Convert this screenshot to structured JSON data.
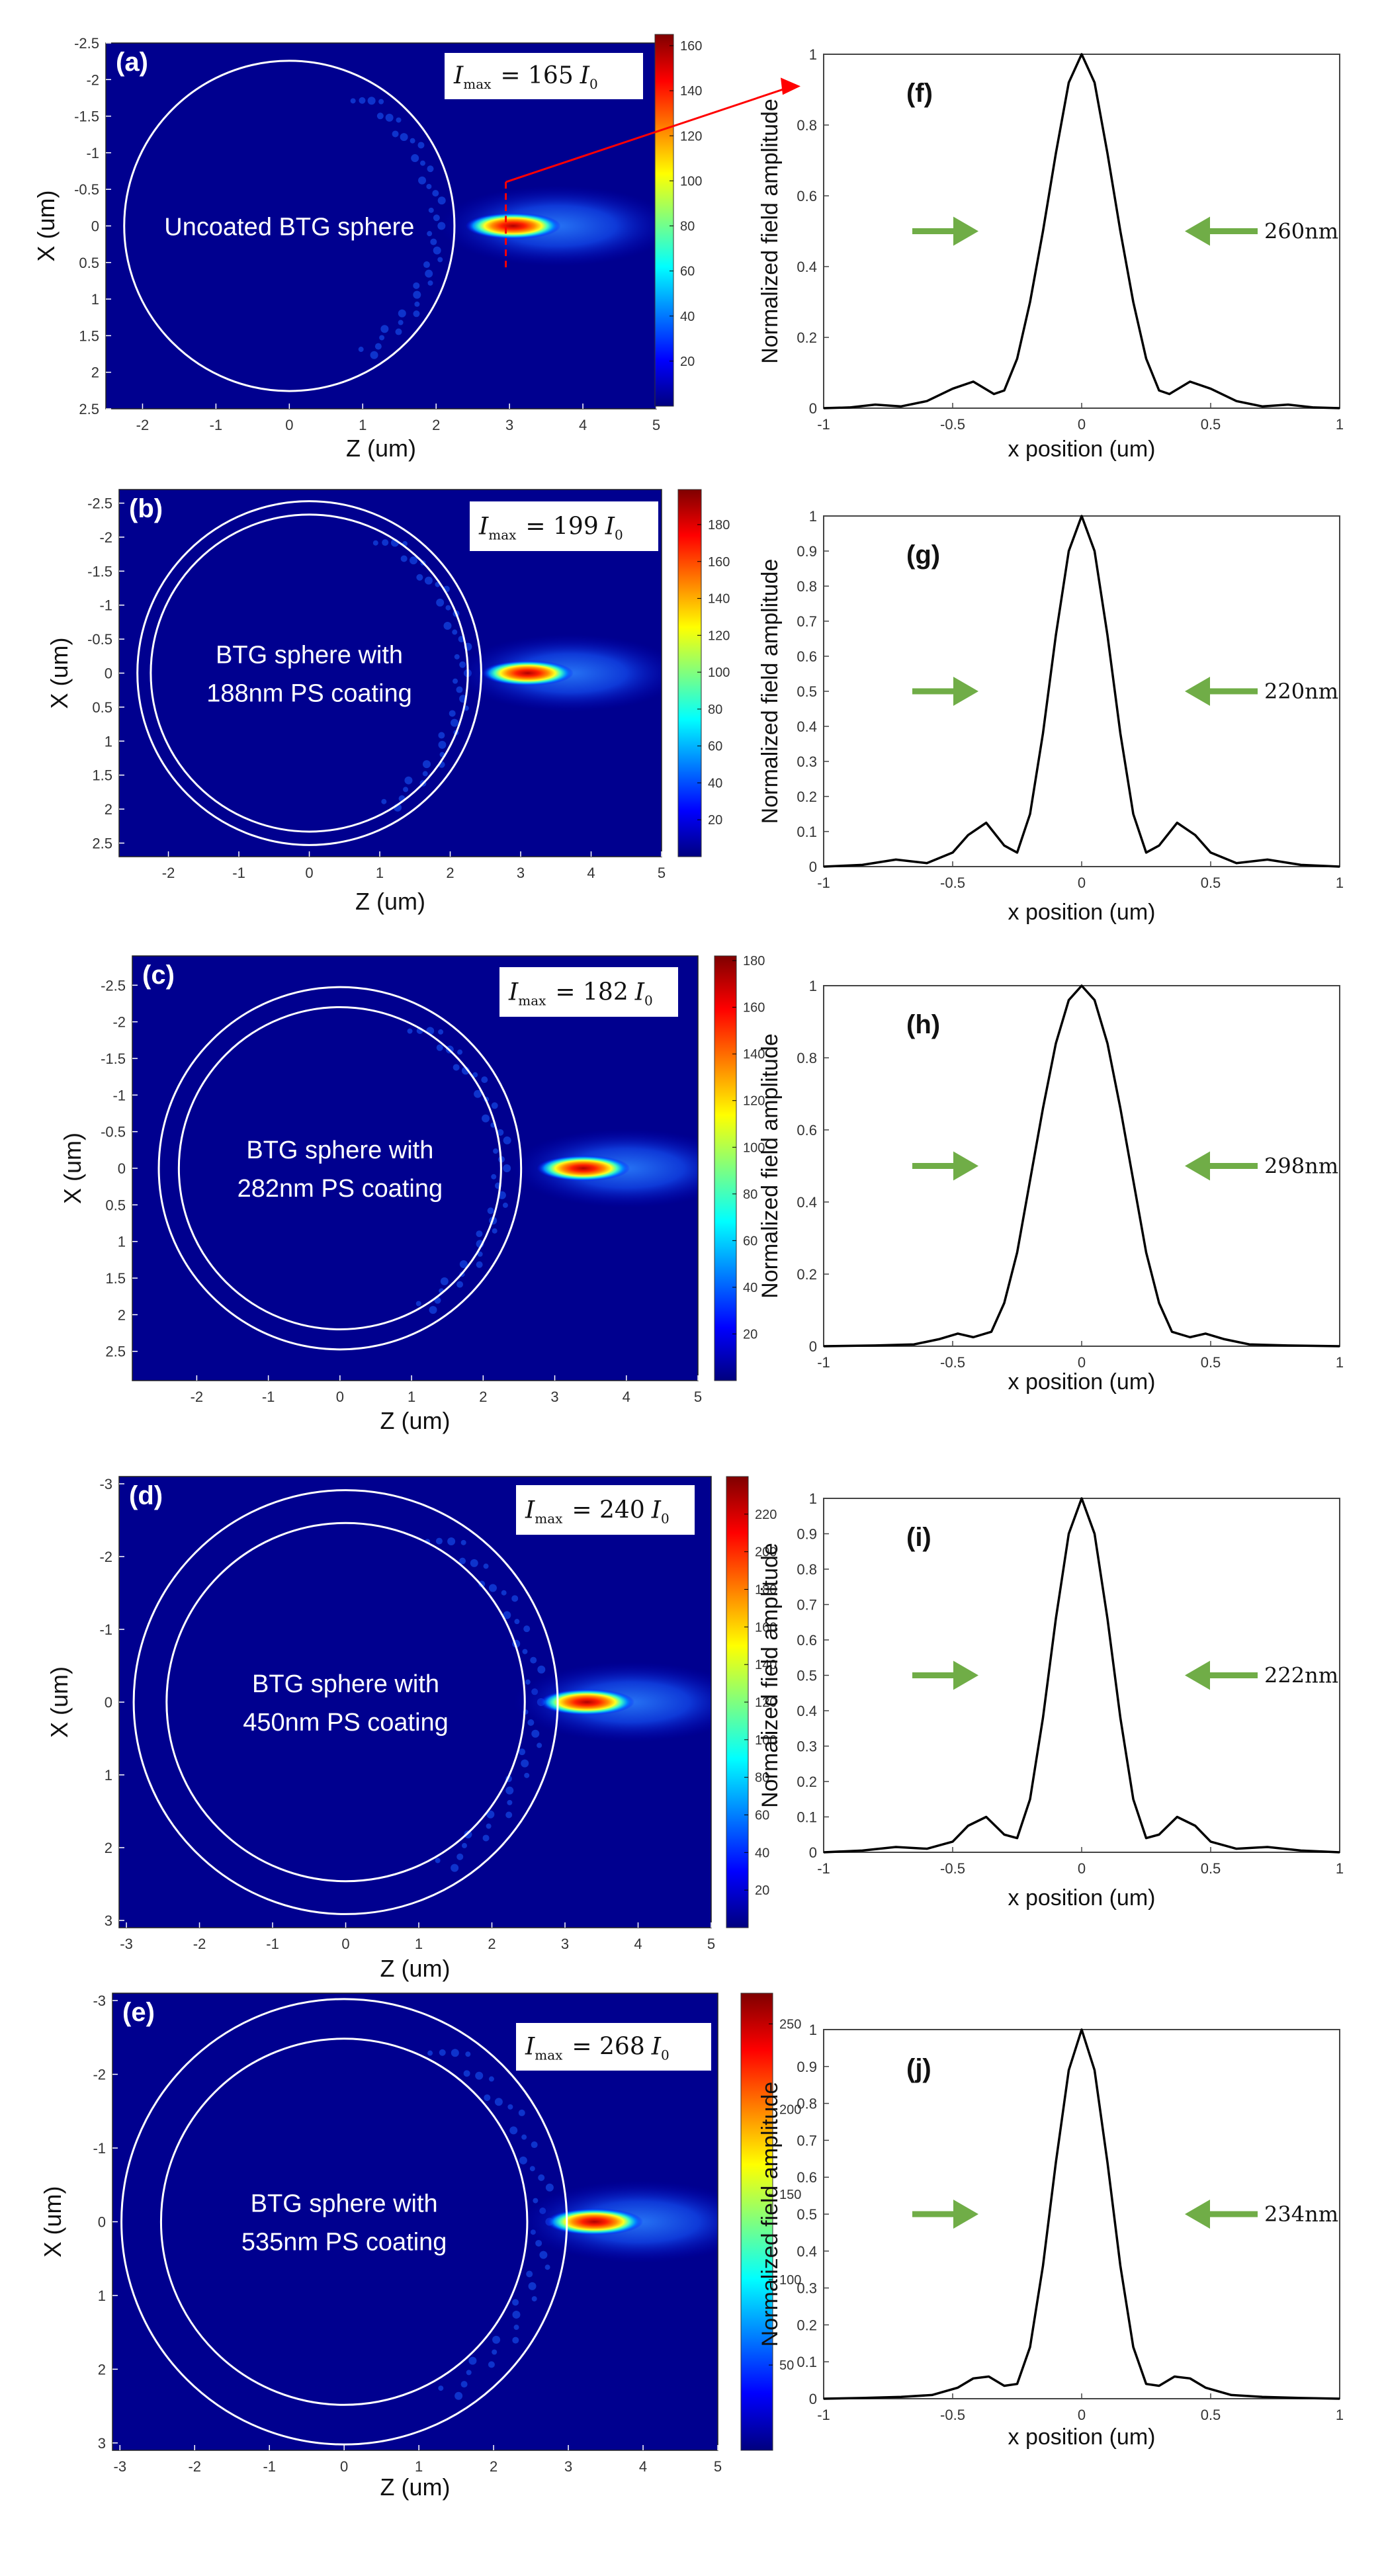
{
  "colors": {
    "field_bg": "#00008f",
    "ring": "#ffffff",
    "curve": "#000000",
    "arrow": "#70ad47",
    "pointer": "#ff0000"
  },
  "colormap": [
    "#00007f",
    "#0000ff",
    "#007fff",
    "#00ffff",
    "#7fff7f",
    "#ffff00",
    "#ff7f00",
    "#ff0000",
    "#7f0000"
  ],
  "chart_data": [
    {
      "type": "heatmap",
      "id": "a",
      "panel_label": "(a)",
      "imax_text": "= 165",
      "imax_subject": "I",
      "imax_sub": "max",
      "imax_unit": "I",
      "imax_unit_sub": "0",
      "description_lines": [
        "Uncoated BTG sphere"
      ],
      "xlabel": "Z (um)",
      "ylabel": "X (um)",
      "xlim": [
        -2.5,
        5
      ],
      "ylim": [
        -2.5,
        2.5
      ],
      "xticks": [
        -2,
        -1,
        0,
        1,
        2,
        3,
        4,
        5
      ],
      "yticks": [
        -2.5,
        -2,
        -1.5,
        -1,
        -0.5,
        0,
        0.5,
        1,
        1.5,
        2,
        2.5
      ],
      "xtick_labels": [
        "-2",
        "-1",
        "0",
        "1",
        "2",
        "3",
        "4",
        "5"
      ],
      "ytick_labels": [
        "-2.5",
        "-2",
        "-1.5",
        "-1",
        "-0.5",
        "0",
        "0.5",
        "1",
        "1.5",
        "2",
        "2.5"
      ],
      "circles_radius_um": [
        2.25
      ],
      "focus_z_um": 3.05,
      "cbar_ticks": [
        20,
        40,
        60,
        80,
        100,
        120,
        140,
        160
      ],
      "cbar_tick_labels": [
        "20",
        "40",
        "60",
        "80",
        "100",
        "120",
        "140",
        "160"
      ],
      "cbar_max": 165
    },
    {
      "type": "heatmap",
      "id": "b",
      "panel_label": "(b)",
      "imax_text": "= 199",
      "imax_subject": "I",
      "imax_sub": "max",
      "imax_unit": "I",
      "imax_unit_sub": "0",
      "description_lines": [
        "BTG sphere with",
        "188nm PS coating"
      ],
      "xlabel": "Z (um)",
      "ylabel": "X (um)",
      "xlim": [
        -2.7,
        5
      ],
      "ylim": [
        -2.7,
        2.7
      ],
      "xticks": [
        -2,
        -1,
        0,
        1,
        2,
        3,
        4,
        5
      ],
      "yticks": [
        -2.5,
        -2,
        -1.5,
        -1,
        -0.5,
        0,
        0.5,
        1,
        1.5,
        2,
        2.5
      ],
      "xtick_labels": [
        "-2",
        "-1",
        "0",
        "1",
        "2",
        "3",
        "4",
        "5"
      ],
      "ytick_labels": [
        "-2.5",
        "-2",
        "-1.5",
        "-1",
        "-0.5",
        "0",
        "0.5",
        "1",
        "1.5",
        "2",
        "2.5"
      ],
      "circles_radius_um": [
        2.25,
        2.44
      ],
      "focus_z_um": 3.1,
      "cbar_ticks": [
        20,
        40,
        60,
        80,
        100,
        120,
        140,
        160,
        180
      ],
      "cbar_tick_labels": [
        "20",
        "40",
        "60",
        "80",
        "100",
        "120",
        "140",
        "160",
        "180"
      ],
      "cbar_max": 199
    },
    {
      "type": "heatmap",
      "id": "c",
      "panel_label": "(c)",
      "imax_text": "= 182",
      "imax_subject": "I",
      "imax_sub": "max",
      "imax_unit": "I",
      "imax_unit_sub": "0",
      "description_lines": [
        "BTG sphere with",
        "282nm PS coating"
      ],
      "xlabel": "Z (um)",
      "ylabel": "X (um)",
      "xlim": [
        -2.9,
        5
      ],
      "ylim": [
        -2.9,
        2.9
      ],
      "xticks": [
        -2,
        -1,
        0,
        1,
        2,
        3,
        4,
        5
      ],
      "yticks": [
        -2.5,
        -2,
        -1.5,
        -1,
        -0.5,
        0,
        0.5,
        1,
        1.5,
        2,
        2.5
      ],
      "xtick_labels": [
        "-2",
        "-1",
        "0",
        "1",
        "2",
        "3",
        "4",
        "5"
      ],
      "ytick_labels": [
        "-2.5",
        "-2",
        "-1.5",
        "-1",
        "-0.5",
        "0",
        "0.5",
        "1",
        "1.5",
        "2",
        "2.5"
      ],
      "circles_radius_um": [
        2.25,
        2.53
      ],
      "focus_z_um": 3.4,
      "cbar_ticks": [
        20,
        40,
        60,
        80,
        100,
        120,
        140,
        160,
        180
      ],
      "cbar_tick_labels": [
        "20",
        "40",
        "60",
        "80",
        "100",
        "120",
        "140",
        "160",
        "180"
      ],
      "cbar_max": 182
    },
    {
      "type": "heatmap",
      "id": "d",
      "panel_label": "(d)",
      "imax_text": "= 240",
      "imax_subject": "I",
      "imax_sub": "max",
      "imax_unit": "I",
      "imax_unit_sub": "0",
      "description_lines": [
        "BTG sphere with",
        "450nm PS coating"
      ],
      "xlabel": "Z (um)",
      "ylabel": "X (um)",
      "xlim": [
        -3.1,
        5
      ],
      "ylim": [
        -3.1,
        3.1
      ],
      "xticks": [
        -3,
        -2,
        -1,
        0,
        1,
        2,
        3,
        4,
        5
      ],
      "yticks": [
        -3,
        -2,
        -1,
        0,
        1,
        2,
        3
      ],
      "xtick_labels": [
        "-3",
        "-2",
        "-1",
        "0",
        "1",
        "2",
        "3",
        "4",
        "5"
      ],
      "ytick_labels": [
        "-3",
        "-2",
        "-1",
        "0",
        "1",
        "2",
        "3"
      ],
      "circles_radius_um": [
        2.45,
        2.9
      ],
      "focus_z_um": 3.3,
      "cbar_ticks": [
        20,
        40,
        60,
        80,
        100,
        120,
        140,
        160,
        180,
        200,
        220
      ],
      "cbar_tick_labels": [
        "20",
        "40",
        "60",
        "80",
        "100",
        "120",
        "140",
        "160",
        "180",
        "200",
        "220"
      ],
      "cbar_max": 240
    },
    {
      "type": "heatmap",
      "id": "e",
      "panel_label": "(e)",
      "imax_text": "= 268",
      "imax_subject": "I",
      "imax_sub": "max",
      "imax_unit": "I",
      "imax_unit_sub": "0",
      "description_lines": [
        "BTG sphere with",
        "535nm PS coating"
      ],
      "xlabel": "Z (um)",
      "ylabel": "X (um)",
      "xlim": [
        -3.1,
        5
      ],
      "ylim": [
        -3.1,
        3.1
      ],
      "xticks": [
        -3,
        -2,
        -1,
        0,
        1,
        2,
        3,
        4,
        5
      ],
      "yticks": [
        -3,
        -2,
        -1,
        0,
        1,
        2,
        3
      ],
      "xtick_labels": [
        "-3",
        "-2",
        "-1",
        "0",
        "1",
        "2",
        "3",
        "4",
        "5"
      ],
      "ytick_labels": [
        "-3",
        "-2",
        "-1",
        "0",
        "1",
        "2",
        "3"
      ],
      "circles_radius_um": [
        2.45,
        2.98
      ],
      "focus_z_um": 3.35,
      "cbar_ticks": [
        50,
        100,
        150,
        200,
        250
      ],
      "cbar_tick_labels": [
        "50",
        "100",
        "150",
        "200",
        "250"
      ],
      "cbar_max": 268
    },
    {
      "type": "line",
      "id": "f",
      "panel_label": "(f)",
      "fwhm_label": "260nm",
      "xlabel": "x position (um)",
      "ylabel": "Normalized field amplitude",
      "xlim": [
        -1,
        1
      ],
      "ylim": [
        0,
        1
      ],
      "xticks": [
        -1,
        -0.5,
        0,
        0.5,
        1
      ],
      "xtick_labels": [
        "-1",
        "-0.5",
        "0",
        "0.5",
        "1"
      ],
      "yticks": [
        0,
        0.2,
        0.4,
        0.6,
        0.8,
        1
      ],
      "ytick_labels": [
        "0",
        "0.2",
        "0.4",
        "0.6",
        "0.8",
        "1"
      ],
      "series": [
        {
          "name": "profile",
          "x": [
            -1,
            -0.9,
            -0.8,
            -0.7,
            -0.6,
            -0.5,
            -0.42,
            -0.34,
            -0.3,
            -0.25,
            -0.2,
            -0.15,
            -0.1,
            -0.05,
            0,
            0.05,
            0.1,
            0.15,
            0.2,
            0.25,
            0.3,
            0.34,
            0.42,
            0.5,
            0.6,
            0.7,
            0.8,
            0.9,
            1
          ],
          "y": [
            0,
            0.002,
            0.01,
            0.005,
            0.02,
            0.055,
            0.075,
            0.04,
            0.05,
            0.14,
            0.3,
            0.5,
            0.72,
            0.92,
            1,
            0.92,
            0.72,
            0.5,
            0.3,
            0.14,
            0.05,
            0.04,
            0.075,
            0.055,
            0.02,
            0.005,
            0.01,
            0.002,
            0
          ]
        }
      ]
    },
    {
      "type": "line",
      "id": "g",
      "panel_label": "(g)",
      "fwhm_label": "220nm",
      "xlabel": "x position (um)",
      "ylabel": "Normalized field amplitude",
      "xlim": [
        -1,
        1
      ],
      "ylim": [
        0,
        1
      ],
      "xticks": [
        -1,
        -0.5,
        0,
        0.5,
        1
      ],
      "xtick_labels": [
        "-1",
        "-0.5",
        "0",
        "0.5",
        "1"
      ],
      "yticks": [
        0,
        0.1,
        0.2,
        0.3,
        0.4,
        0.5,
        0.6,
        0.7,
        0.8,
        0.9,
        1
      ],
      "ytick_labels": [
        "0",
        "0.1",
        "0.2",
        "0.3",
        "0.4",
        "0.5",
        "0.6",
        "0.7",
        "0.8",
        "0.9",
        "1"
      ],
      "series": [
        {
          "name": "profile",
          "x": [
            -1,
            -0.85,
            -0.72,
            -0.6,
            -0.5,
            -0.44,
            -0.37,
            -0.3,
            -0.25,
            -0.2,
            -0.15,
            -0.1,
            -0.05,
            0,
            0.05,
            0.1,
            0.15,
            0.2,
            0.25,
            0.3,
            0.37,
            0.44,
            0.5,
            0.6,
            0.72,
            0.85,
            1
          ],
          "y": [
            0,
            0.005,
            0.02,
            0.01,
            0.04,
            0.09,
            0.125,
            0.06,
            0.04,
            0.15,
            0.38,
            0.66,
            0.9,
            1,
            0.9,
            0.66,
            0.38,
            0.15,
            0.04,
            0.06,
            0.125,
            0.09,
            0.04,
            0.01,
            0.02,
            0.005,
            0
          ]
        }
      ]
    },
    {
      "type": "line",
      "id": "h",
      "panel_label": "(h)",
      "fwhm_label": "298nm",
      "xlabel": "x position (um)",
      "ylabel": "Normalized field amplitude",
      "xlim": [
        -1,
        1
      ],
      "ylim": [
        0,
        1
      ],
      "xticks": [
        -1,
        -0.5,
        0,
        0.5,
        1
      ],
      "xtick_labels": [
        "-1",
        "-0.5",
        "0",
        "0.5",
        "1"
      ],
      "yticks": [
        0,
        0.2,
        0.4,
        0.6,
        0.8,
        1
      ],
      "ytick_labels": [
        "0",
        "0.2",
        "0.4",
        "0.6",
        "0.8",
        "1"
      ],
      "series": [
        {
          "name": "profile",
          "x": [
            -1,
            -0.8,
            -0.65,
            -0.55,
            -0.48,
            -0.42,
            -0.35,
            -0.3,
            -0.25,
            -0.2,
            -0.15,
            -0.1,
            -0.05,
            0,
            0.05,
            0.1,
            0.15,
            0.2,
            0.25,
            0.3,
            0.35,
            0.42,
            0.48,
            0.55,
            0.65,
            0.8,
            1
          ],
          "y": [
            0,
            0.002,
            0.005,
            0.02,
            0.035,
            0.025,
            0.04,
            0.12,
            0.26,
            0.46,
            0.66,
            0.84,
            0.96,
            1,
            0.96,
            0.84,
            0.66,
            0.46,
            0.26,
            0.12,
            0.04,
            0.025,
            0.035,
            0.02,
            0.005,
            0.002,
            0
          ]
        }
      ]
    },
    {
      "type": "line",
      "id": "i",
      "panel_label": "(i)",
      "fwhm_label": "222nm",
      "xlabel": "x position (um)",
      "ylabel": "Normalized field amplitude",
      "xlim": [
        -1,
        1
      ],
      "ylim": [
        0,
        1
      ],
      "xticks": [
        -1,
        -0.5,
        0,
        0.5,
        1
      ],
      "xtick_labels": [
        "-1",
        "-0.5",
        "0",
        "0.5",
        "1"
      ],
      "yticks": [
        0,
        0.1,
        0.2,
        0.3,
        0.4,
        0.5,
        0.6,
        0.7,
        0.8,
        0.9,
        1
      ],
      "ytick_labels": [
        "0",
        "0.1",
        "0.2",
        "0.3",
        "0.4",
        "0.5",
        "0.6",
        "0.7",
        "0.8",
        "0.9",
        "1"
      ],
      "series": [
        {
          "name": "profile",
          "x": [
            -1,
            -0.85,
            -0.72,
            -0.6,
            -0.5,
            -0.44,
            -0.37,
            -0.3,
            -0.25,
            -0.2,
            -0.15,
            -0.1,
            -0.05,
            0,
            0.05,
            0.1,
            0.15,
            0.2,
            0.25,
            0.3,
            0.37,
            0.44,
            0.5,
            0.6,
            0.72,
            0.85,
            1
          ],
          "y": [
            0,
            0.005,
            0.015,
            0.01,
            0.03,
            0.075,
            0.1,
            0.05,
            0.04,
            0.15,
            0.38,
            0.66,
            0.9,
            1,
            0.9,
            0.66,
            0.38,
            0.15,
            0.04,
            0.05,
            0.1,
            0.075,
            0.03,
            0.01,
            0.015,
            0.005,
            0
          ]
        }
      ]
    },
    {
      "type": "line",
      "id": "j",
      "panel_label": "(j)",
      "fwhm_label": "234nm",
      "xlabel": "x position (um)",
      "ylabel": "Normalized field amplitude",
      "xlim": [
        -1,
        1
      ],
      "ylim": [
        0,
        1
      ],
      "xticks": [
        -1,
        -0.5,
        0,
        0.5,
        1
      ],
      "xtick_labels": [
        "-1",
        "-0.5",
        "0",
        "0.5",
        "1"
      ],
      "yticks": [
        0,
        0.1,
        0.2,
        0.3,
        0.4,
        0.5,
        0.6,
        0.7,
        0.8,
        0.9,
        1
      ],
      "ytick_labels": [
        "0",
        "0.1",
        "0.2",
        "0.3",
        "0.4",
        "0.5",
        "0.6",
        "0.7",
        "0.8",
        "0.9",
        "1"
      ],
      "series": [
        {
          "name": "profile",
          "x": [
            -1,
            -0.85,
            -0.7,
            -0.58,
            -0.48,
            -0.42,
            -0.36,
            -0.3,
            -0.25,
            -0.2,
            -0.15,
            -0.1,
            -0.05,
            0,
            0.05,
            0.1,
            0.15,
            0.2,
            0.25,
            0.3,
            0.36,
            0.42,
            0.48,
            0.58,
            0.7,
            0.85,
            1
          ],
          "y": [
            0,
            0.002,
            0.005,
            0.01,
            0.03,
            0.055,
            0.06,
            0.035,
            0.04,
            0.14,
            0.36,
            0.64,
            0.89,
            1,
            0.89,
            0.64,
            0.36,
            0.14,
            0.04,
            0.035,
            0.06,
            0.055,
            0.03,
            0.01,
            0.005,
            0.002,
            0
          ]
        }
      ]
    }
  ]
}
